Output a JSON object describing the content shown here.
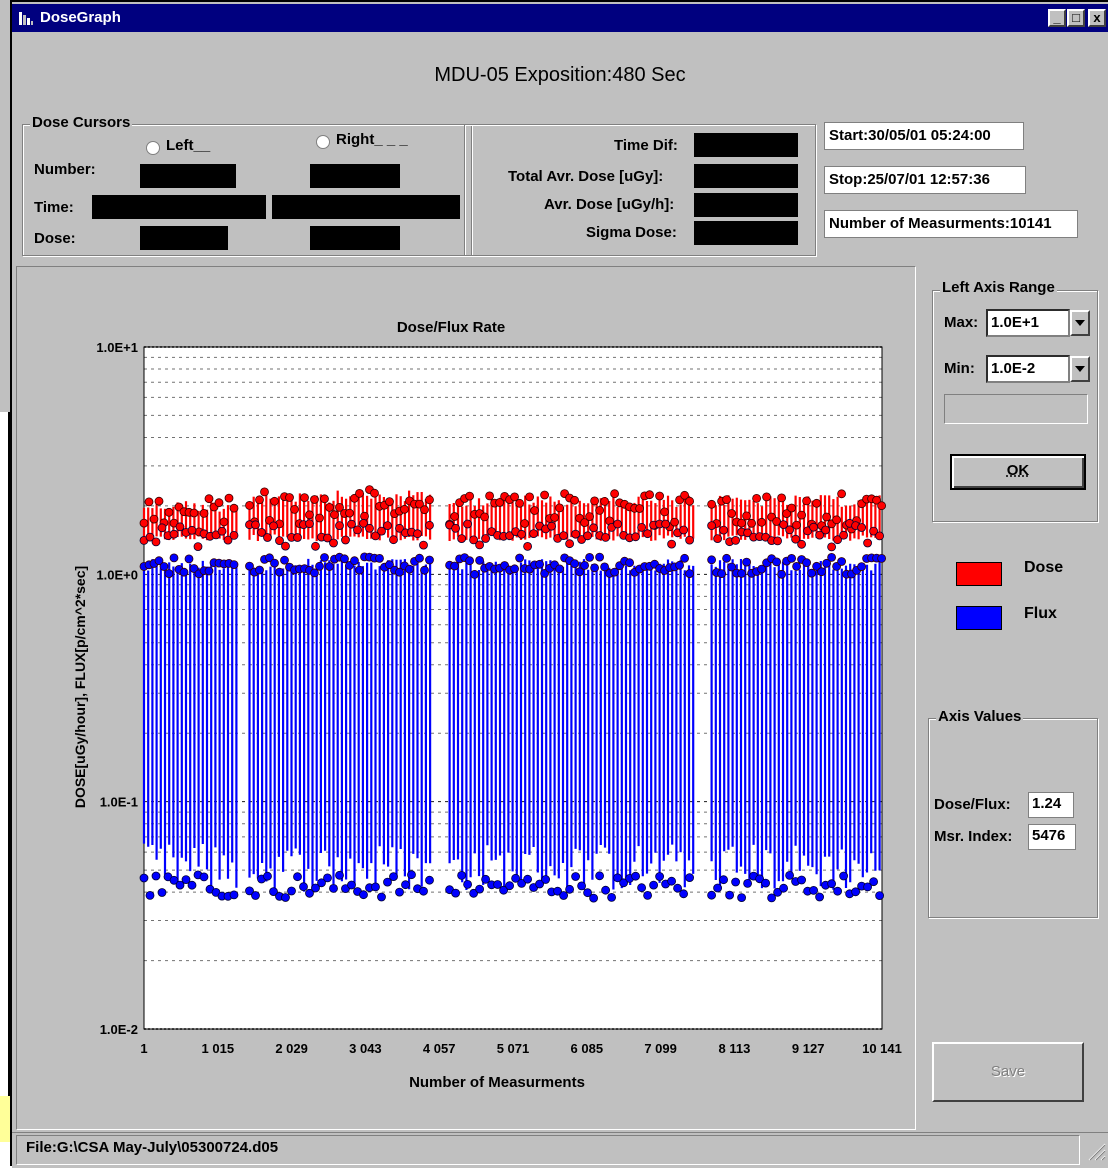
{
  "window": {
    "title": "DoseGraph",
    "header": "MDU-05 Exposition:480 Sec",
    "minimize_glyph": "_",
    "maximize_glyph": "□",
    "close_glyph": "x"
  },
  "dose_cursors": {
    "group_label": "Dose Cursors",
    "left_radio_label": "Left__",
    "right_radio_label": "Right_ _ _",
    "number_label": "Number:",
    "time_label": "Time:",
    "dose_label": "Dose:"
  },
  "dose_stats": {
    "time_dif_label": "Time Dif:",
    "total_avr_dose_label": "Total Avr. Dose [uGy]:",
    "avr_dose_label": "Avr. Dose [uGy/h]:",
    "sigma_dose_label": "Sigma Dose:"
  },
  "info": {
    "start": "Start:30/05/01 05:24:00",
    "stop": "Stop:25/07/01 12:57:36",
    "number_of_measurements": "Number of Measurments:10141"
  },
  "left_axis_range": {
    "group_label": "Left Axis Range",
    "max_label": "Max:",
    "max_value": "1.0E+1",
    "min_label": "Min:",
    "min_value": "1.0E-2",
    "ok_label": "OK"
  },
  "legend": {
    "dose_label": "Dose",
    "flux_label": "Flux",
    "dose_color": "#ff0000",
    "flux_color": "#0000ff"
  },
  "axis_values": {
    "group_label": "Axis Values",
    "dose_flux_label": "Dose/Flux:",
    "dose_flux_value": "1.24",
    "msr_index_label": "Msr. Index:",
    "msr_index_value": "5476"
  },
  "save_label": "Save",
  "status": {
    "file": "File:G:\\CSA May-July\\05300724.d05"
  },
  "chart_data": {
    "type": "scatter",
    "title": "Dose/Flux Rate",
    "xlabel": "Number of Measurments",
    "ylabel": "DOSE[uGy/hour], FLUX[p/cm^2*sec]",
    "y_scale": "log",
    "ylim": [
      0.01,
      10
    ],
    "xlim": [
      1,
      10141
    ],
    "y_tick_labels": [
      "1.0E+1",
      "1.0E+0",
      "1.0E-1",
      "1.0E-2"
    ],
    "y_tick_values": [
      10,
      1,
      0.1,
      0.01
    ],
    "x_tick_labels": [
      "1",
      "1 015",
      "2 029",
      "3 043",
      "4 057",
      "5 071",
      "6 085",
      "7 099",
      "8 113",
      "9 127",
      "10 141"
    ],
    "x_tick_values": [
      1,
      1015,
      2029,
      3043,
      4057,
      5071,
      6085,
      7099,
      8113,
      9127,
      10141
    ],
    "grid": "horizontal dotted",
    "series": [
      {
        "name": "Dose",
        "color": "#ff0000",
        "segments": [
          {
            "x_start": 1,
            "x_end": 1300,
            "y_high": 2.0,
            "y_low": 1.4
          },
          {
            "x_start": 1450,
            "x_end": 3950,
            "y_high": 2.2,
            "y_low": 1.4
          },
          {
            "x_start": 4200,
            "x_end": 7550,
            "y_high": 2.1,
            "y_low": 1.4
          },
          {
            "x_start": 7800,
            "x_end": 10141,
            "y_high": 2.1,
            "y_low": 1.4
          }
        ]
      },
      {
        "name": "Flux",
        "color": "#0000ff",
        "segments": [
          {
            "x_start": 1,
            "x_end": 1300,
            "y_high": 1.1,
            "y_low": 0.04
          },
          {
            "x_start": 1450,
            "x_end": 3950,
            "y_high": 1.1,
            "y_low": 0.04
          },
          {
            "x_start": 4200,
            "x_end": 7550,
            "y_high": 1.1,
            "y_low": 0.04
          },
          {
            "x_start": 7800,
            "x_end": 10141,
            "y_high": 1.1,
            "y_low": 0.04
          }
        ]
      }
    ]
  }
}
